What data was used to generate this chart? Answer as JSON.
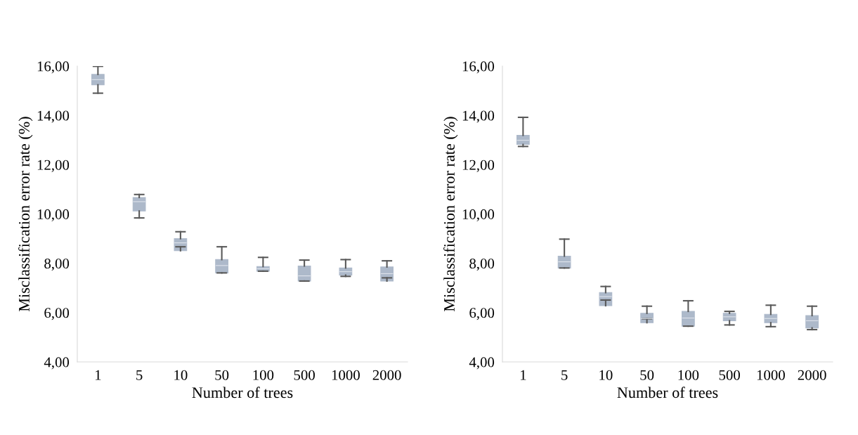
{
  "chart_data": [
    {
      "type": "box",
      "xlabel": "Number of trees",
      "ylabel": "Misclassification error rate (%)",
      "categories": [
        "1",
        "5",
        "10",
        "50",
        "100",
        "500",
        "1000",
        "2000"
      ],
      "color": "#adb9ca",
      "ylim": [
        4,
        16
      ],
      "yticks": [
        {
          "value": 4,
          "label": "4,00"
        },
        {
          "value": 6,
          "label": "6,00"
        },
        {
          "value": 8,
          "label": "8,00"
        },
        {
          "value": 10,
          "label": "10,00"
        },
        {
          "value": 12,
          "label": "12,00"
        },
        {
          "value": 14,
          "label": "14,00"
        },
        {
          "value": 16,
          "label": "16,00"
        }
      ],
      "grid": false,
      "boxes": [
        {
          "low": 14.9,
          "q1": 15.24,
          "median": 15.45,
          "q3": 15.66,
          "high": 15.99
        },
        {
          "low": 9.84,
          "q1": 10.12,
          "median": 10.5,
          "q3": 10.67,
          "high": 10.79
        },
        {
          "low": 8.67,
          "q1": 8.51,
          "median": 8.83,
          "q3": 9.0,
          "high": 9.28
        },
        {
          "low": 7.61,
          "q1": 7.61,
          "median": 7.91,
          "q3": 8.15,
          "high": 8.67
        },
        {
          "low": 7.68,
          "q1": 7.68,
          "median": 7.78,
          "q3": 7.87,
          "high": 8.24
        },
        {
          "low": 7.28,
          "q1": 7.28,
          "median": 7.49,
          "q3": 7.89,
          "high": 8.13
        },
        {
          "low": 7.47,
          "q1": 7.52,
          "median": 7.66,
          "q3": 7.81,
          "high": 8.15
        },
        {
          "low": 7.41,
          "q1": 7.28,
          "median": 7.58,
          "q3": 7.85,
          "high": 8.1
        }
      ]
    },
    {
      "type": "box",
      "xlabel": "Number of trees",
      "ylabel": "Misclassification error rate (%)",
      "categories": [
        "1",
        "5",
        "10",
        "50",
        "100",
        "500",
        "1000",
        "2000"
      ],
      "color": "#adb9ca",
      "ylim": [
        4,
        16
      ],
      "yticks": [
        {
          "value": 4,
          "label": "4,00"
        },
        {
          "value": 6,
          "label": "6,00"
        },
        {
          "value": 8,
          "label": "8,00"
        },
        {
          "value": 10,
          "label": "10,00"
        },
        {
          "value": 12,
          "label": "12,00"
        },
        {
          "value": 14,
          "label": "14,00"
        },
        {
          "value": 16,
          "label": "16,00"
        }
      ],
      "grid": false,
      "boxes": [
        {
          "low": 12.74,
          "q1": 12.82,
          "median": 12.99,
          "q3": 13.19,
          "high": 13.92
        },
        {
          "low": 7.81,
          "q1": 7.81,
          "median": 8.06,
          "q3": 8.29,
          "high": 8.98
        },
        {
          "low": 6.51,
          "q1": 6.28,
          "median": 6.65,
          "q3": 6.81,
          "high": 7.06
        },
        {
          "low": 5.75,
          "q1": 5.59,
          "median": 5.76,
          "q3": 5.97,
          "high": 6.26
        },
        {
          "low": 5.45,
          "q1": 5.45,
          "median": 5.78,
          "q3": 6.05,
          "high": 6.48
        },
        {
          "low": 5.5,
          "q1": 5.67,
          "median": 5.83,
          "q3": 5.97,
          "high": 6.05
        },
        {
          "low": 5.43,
          "q1": 5.59,
          "median": 5.76,
          "q3": 5.93,
          "high": 6.3
        },
        {
          "low": 5.31,
          "q1": 5.38,
          "median": 5.67,
          "q3": 5.88,
          "high": 6.26
        }
      ]
    }
  ]
}
